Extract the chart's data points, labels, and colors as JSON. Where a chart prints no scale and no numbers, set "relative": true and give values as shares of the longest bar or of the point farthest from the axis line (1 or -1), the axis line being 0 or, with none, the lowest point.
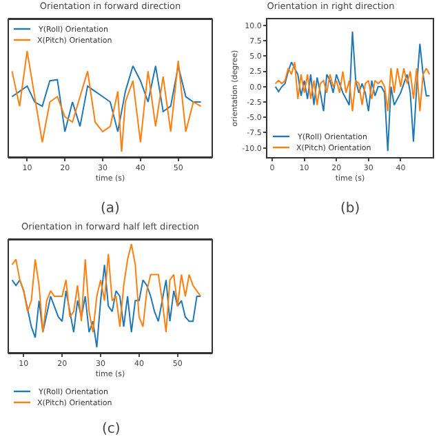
{
  "chart_data": [
    {
      "type": "line",
      "title": "Orientation in forward direction",
      "xlabel": "time (s)",
      "relative": true,
      "xlim": [
        5,
        59
      ],
      "xticks": [
        10,
        20,
        30,
        40,
        50
      ],
      "legend": "top left",
      "annotations": [
        "(a)"
      ],
      "series": [
        {
          "name": "Y(Roll) Orientation",
          "color": "#1f77b4",
          "x": [
            6,
            8,
            10,
            12,
            14,
            16,
            18,
            20,
            22,
            24,
            26,
            28,
            30,
            32,
            34,
            36,
            38,
            40,
            42,
            44,
            46,
            48,
            50,
            52,
            54,
            56
          ],
          "values": [
            0.57,
            0.62,
            0.67,
            0.52,
            0.48,
            0.72,
            0.73,
            0.24,
            0.52,
            0.29,
            0.67,
            0.62,
            0.57,
            0.52,
            0.24,
            0.62,
            0.86,
            0.72,
            0.52,
            0.86,
            0.43,
            0.48,
            0.86,
            0.57,
            0.52,
            0.52
          ]
        },
        {
          "name": "X(Pitch) Orientation",
          "color": "#ff7f0e",
          "x": [
            6,
            8,
            10,
            12,
            14,
            16,
            18,
            20,
            22,
            24,
            26,
            28,
            30,
            32,
            34,
            35,
            36,
            38,
            40,
            42,
            44,
            46,
            48,
            50,
            52,
            54,
            56
          ],
          "values": [
            0.81,
            0.48,
            1.0,
            0.57,
            0.14,
            0.52,
            0.57,
            0.38,
            0.33,
            0.57,
            0.81,
            0.33,
            0.24,
            0.29,
            0.62,
            0.05,
            0.52,
            0.72,
            0.14,
            0.81,
            0.29,
            0.76,
            0.24,
            0.91,
            0.24,
            0.52,
            0.48
          ]
        }
      ]
    },
    {
      "type": "line",
      "title": "Orientation in right direction",
      "xlabel": "time (s)",
      "ylabel": "orientation (degree)",
      "xlim": [
        -1.5,
        50
      ],
      "xticks": [
        0,
        10,
        20,
        30,
        40
      ],
      "ylim": [
        -11.5,
        11
      ],
      "yticks": [
        {
          "value": -10,
          "label": "-10.0"
        },
        {
          "value": -7.5,
          "label": "-7.5"
        },
        {
          "value": -5,
          "label": "-5.0"
        },
        {
          "value": -2.5,
          "label": "-2.5"
        },
        {
          "value": 0,
          "label": "0.0"
        },
        {
          "value": 2.5,
          "label": "2.5"
        },
        {
          "value": 5,
          "label": "5.0"
        },
        {
          "value": 7.5,
          "label": "7.5"
        },
        {
          "value": 10,
          "label": "10.0"
        }
      ],
      "legend": "bottom left",
      "annotations": [
        "(b)"
      ],
      "series": [
        {
          "name": "Y(Roll) Orientation",
          "color": "#1f77b4",
          "x": [
            1,
            2,
            3,
            4,
            5,
            6,
            7,
            8,
            9,
            10,
            11,
            12,
            13,
            14,
            15,
            16,
            17,
            18,
            19,
            20,
            21,
            22,
            23,
            24,
            25,
            26,
            27,
            28,
            29,
            30,
            31,
            32,
            33,
            34,
            35,
            36,
            37,
            38,
            39,
            40,
            41,
            42,
            43,
            44,
            45,
            46,
            47,
            48,
            49
          ],
          "values": [
            0,
            -0.8,
            0,
            0.5,
            2.5,
            4,
            3,
            2,
            -1.5,
            1,
            -2,
            2,
            -3,
            1.5,
            -1,
            -4,
            2,
            1,
            -1,
            2,
            0.5,
            -1,
            -2,
            -3,
            9,
            1,
            -1,
            0.5,
            -1,
            -4,
            1,
            -1.5,
            0,
            0,
            -1,
            -10.5,
            0,
            -3,
            -2,
            -1,
            0.5,
            2,
            -1,
            -9,
            0,
            7,
            2,
            -1.5,
            -1.5
          ]
        },
        {
          "name": "X(Pitch) Orientation",
          "color": "#ff7f0e",
          "x": [
            1,
            2,
            3,
            4,
            5,
            6,
            7,
            8,
            9,
            10,
            11,
            12,
            13,
            14,
            15,
            16,
            17,
            18,
            19,
            20,
            21,
            22,
            23,
            24,
            25,
            26,
            27,
            28,
            29,
            30,
            31,
            32,
            33,
            34,
            35,
            36,
            37,
            38,
            39,
            40,
            41,
            42,
            43,
            44,
            45,
            46,
            47,
            48,
            49
          ],
          "values": [
            0.5,
            1,
            0.5,
            1,
            3,
            2,
            4,
            -2,
            2,
            -1,
            2,
            -2,
            1,
            -3,
            0.5,
            1,
            -1,
            2,
            0,
            1,
            -1,
            2.5,
            -1,
            1,
            -4,
            1,
            0.5,
            -3,
            0.5,
            1,
            -2,
            1,
            0.5,
            1,
            0,
            -4,
            3,
            -1,
            3,
            0,
            3,
            0.5,
            2.5,
            -2,
            3,
            -4,
            2,
            3,
            2
          ]
        }
      ]
    },
    {
      "type": "line",
      "title": "Orientation in forward half left direction",
      "xlabel": "time (s)",
      "relative": true,
      "xlim": [
        6,
        59
      ],
      "xticks": [
        10,
        20,
        30,
        40,
        50
      ],
      "legend": "bottom left",
      "annotations": [
        "(c)"
      ],
      "series": [
        {
          "name": "Y(Roll) Orientation",
          "color": "#1f77b4",
          "x": [
            7,
            8,
            9,
            10,
            12,
            13,
            14,
            15,
            17,
            19,
            20,
            21,
            22,
            23,
            24,
            25,
            26,
            27,
            28,
            29,
            30,
            31,
            32,
            33,
            34,
            35,
            36,
            37,
            38,
            39,
            40,
            41,
            42,
            43,
            44,
            45,
            46,
            47,
            48,
            49,
            50,
            51,
            52,
            53,
            54,
            55,
            56
          ],
          "values": [
            0.67,
            0.62,
            0.67,
            0.57,
            0.24,
            0.14,
            0.48,
            0.19,
            0.52,
            0.33,
            0.29,
            0.57,
            0.38,
            0.19,
            0.48,
            0.33,
            0.52,
            0.19,
            0.29,
            0.05,
            0.48,
            0.81,
            0.43,
            0.38,
            0.57,
            0.52,
            0.24,
            0.52,
            0.19,
            0.48,
            0.48,
            0.67,
            0.62,
            0.52,
            0.38,
            0.29,
            0.48,
            0.67,
            0.29,
            0.57,
            0.43,
            0.48,
            0.33,
            0.29,
            0.29,
            0.52,
            0.52
          ]
        },
        {
          "name": "X(Pitch) Orientation",
          "color": "#ff7f0e",
          "x": [
            7,
            8,
            9,
            10,
            11,
            12,
            13,
            14,
            15,
            16,
            17,
            18,
            19,
            20,
            21,
            22,
            23,
            24,
            25,
            26,
            27,
            28,
            29,
            30,
            31,
            32,
            33,
            34,
            35,
            36,
            37,
            38,
            39,
            40,
            41,
            42,
            43,
            44,
            45,
            46,
            47,
            48,
            49,
            50,
            51,
            52,
            53,
            54,
            55,
            56
          ],
          "values": [
            0.81,
            0.86,
            0.67,
            0.57,
            0.38,
            0.48,
            0.86,
            0.62,
            0.19,
            0.48,
            0.57,
            0.52,
            0.52,
            0.52,
            0.67,
            0.33,
            0.38,
            0.62,
            0.29,
            0.86,
            0.38,
            0.19,
            0.52,
            0.67,
            0.48,
            0.91,
            0.48,
            0.52,
            0.24,
            0.62,
            0.86,
            1.0,
            0.81,
            0.33,
            0.24,
            0.57,
            0.72,
            0.72,
            0.72,
            0.48,
            0.19,
            0.67,
            0.72,
            0.43,
            0.72,
            0.52,
            0.72,
            0.62,
            0.57,
            0.52
          ]
        }
      ]
    }
  ]
}
